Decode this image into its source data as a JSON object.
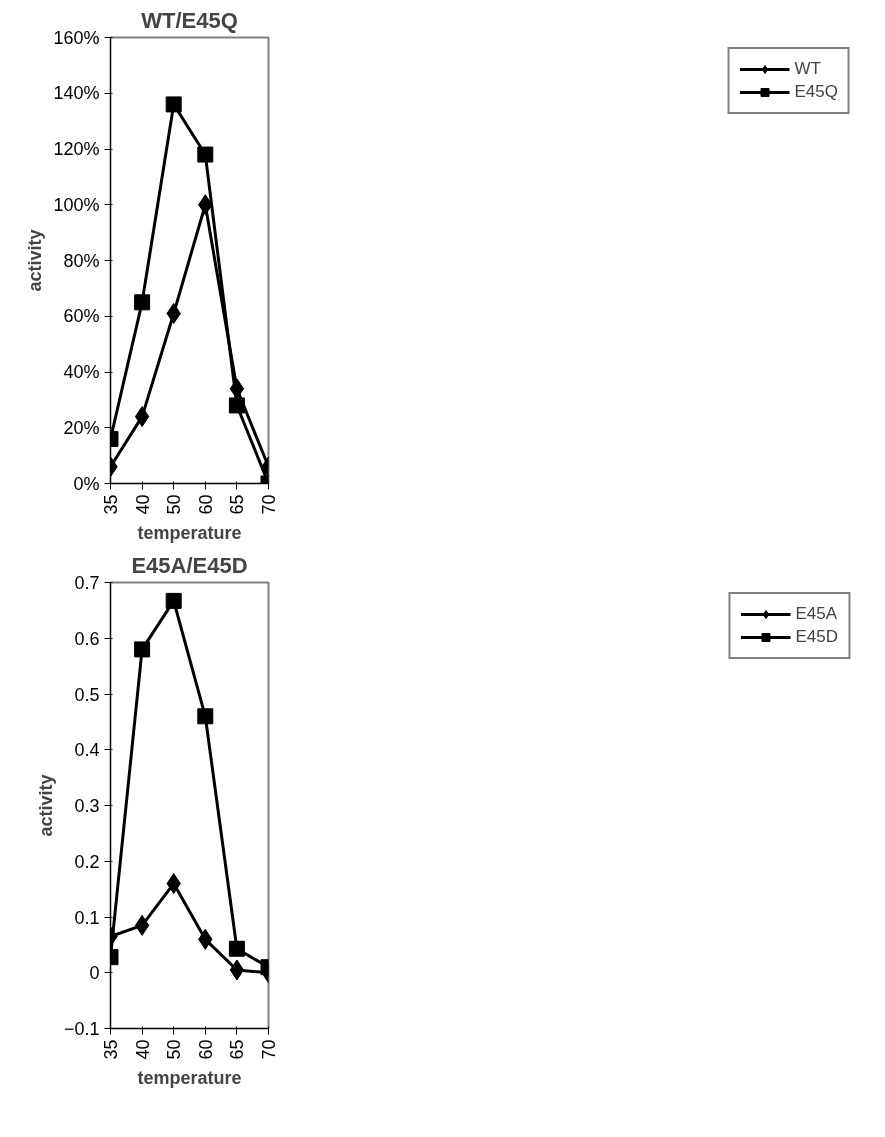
{
  "chart_data": [
    {
      "type": "line",
      "title": "WT/E45Q",
      "xlabel": "temperature",
      "ylabel": "activity",
      "categories": [
        "35",
        "40",
        "50",
        "60",
        "65",
        "70"
      ],
      "series": [
        {
          "name": "WT",
          "color": "#000000",
          "marker": "diamond",
          "values": [
            6,
            24,
            61,
            100,
            34,
            6
          ]
        },
        {
          "name": "E45Q",
          "color": "#000000",
          "marker": "square",
          "values": [
            16,
            65,
            136,
            118,
            28,
            0
          ]
        }
      ],
      "ylim": [
        0,
        160
      ],
      "yticks": [
        {
          "value": 0,
          "label": "0%"
        },
        {
          "value": 20,
          "label": "20%"
        },
        {
          "value": 40,
          "label": "40%"
        },
        {
          "value": 60,
          "label": "60%"
        },
        {
          "value": 80,
          "label": "80%"
        },
        {
          "value": 100,
          "label": "100%"
        },
        {
          "value": 120,
          "label": "120%"
        },
        {
          "value": 140,
          "label": "140%"
        },
        {
          "value": 160,
          "label": "160%"
        }
      ],
      "grid": false,
      "legend": "right",
      "line_style": "solid"
    },
    {
      "type": "line",
      "title": "E45A/E45D",
      "xlabel": "temperature",
      "ylabel": "activity",
      "categories": [
        "35",
        "40",
        "50",
        "60",
        "65",
        "70"
      ],
      "series": [
        {
          "name": "E45A",
          "color": "#000000",
          "marker": "diamond",
          "values": [
            0.065,
            0.085,
            0.16,
            0.06,
            0.005,
            0
          ]
        },
        {
          "name": "E45D",
          "color": "#000000",
          "marker": "square",
          "values": [
            0.028,
            0.58,
            0.667,
            0.46,
            0.043,
            0.01
          ]
        }
      ],
      "ylim": [
        -0.1,
        0.7
      ],
      "yticks": [
        -0.1,
        0,
        0.1,
        0.2,
        0.3,
        0.4,
        0.5,
        0.6,
        0.7
      ],
      "grid": false,
      "legend": "right",
      "line_style": "solid"
    }
  ]
}
